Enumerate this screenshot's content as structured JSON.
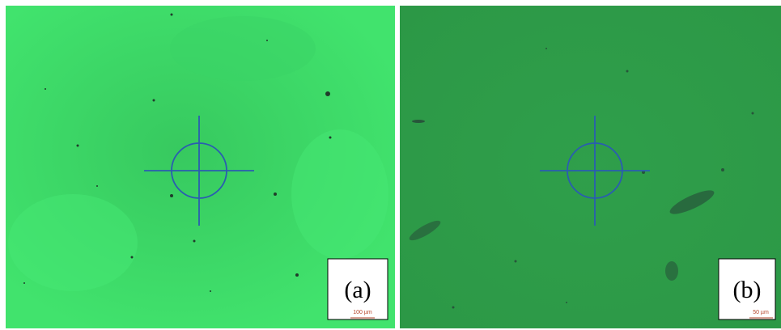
{
  "panels": [
    {
      "label": "(a)",
      "scale_bar": "100 µm"
    },
    {
      "label": "(b)",
      "scale_bar": "50 µm"
    }
  ]
}
